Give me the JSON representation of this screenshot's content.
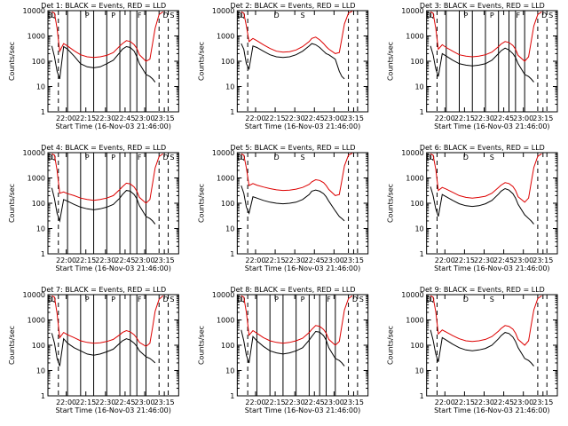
{
  "figure": {
    "panels": [
      {
        "title": "Det 1: BLACK = Events, RED = LLD",
        "xticks": [
          "22:00",
          "22:15",
          "22:30",
          "22:45",
          "23:00",
          "23:15"
        ],
        "xlabel": "Start Time (16-Nov-03 21:46:00)",
        "ylabel": "Counts/sec",
        "flags": [
          "D",
          "Q",
          "P",
          "P",
          "F",
          "D",
          "S"
        ]
      },
      {
        "title": "Det 2: BLACK = Events, RED = LLD",
        "xticks": [
          "22:00",
          "22:15",
          "22:30",
          "22:45",
          "23:00",
          "23:15"
        ],
        "xlabel": "Start Time (16-Nov-03 21:46:00)",
        "ylabel": "Counts/sec",
        "flags": [
          "D",
          "Q",
          "D",
          "S"
        ]
      },
      {
        "title": "Det 3: BLACK = Events, RED = LLD",
        "xticks": [
          "22:00",
          "22:15",
          "22:30",
          "22:45",
          "23:00",
          "23:15"
        ],
        "xlabel": "Start Time (16-Nov-03 21:46:00)",
        "ylabel": "Counts/sec",
        "flags": [
          "D",
          "Q",
          "P",
          "P",
          "F",
          "D",
          "S"
        ]
      },
      {
        "title": "Det 4: BLACK = Events, RED = LLD",
        "xticks": [
          "22:00",
          "22:15",
          "22:30",
          "22:45",
          "23:00",
          "23:15"
        ],
        "xlabel": "Start Time (16-Nov-03 21:46:00)",
        "ylabel": "Counts/sec",
        "flags": [
          "D",
          "Q",
          "P",
          "P",
          "F",
          "D",
          "S"
        ]
      },
      {
        "title": "Det 5: BLACK = Events, RED = LLD",
        "xticks": [
          "22:00",
          "22:15",
          "22:30",
          "22:45",
          "23:00",
          "23:15"
        ],
        "xlabel": "Start Time (16-Nov-03 21:46:00)",
        "ylabel": "Counts/sec",
        "flags": [
          "D",
          "Q",
          "D",
          "S"
        ]
      },
      {
        "title": "Det 6: BLACK = Events, RED = LLD",
        "xticks": [
          "22:00",
          "22:15",
          "22:30",
          "22:45",
          "23:00",
          "23:15"
        ],
        "xlabel": "Start Time (16-Nov-03 21:46:00)",
        "ylabel": "Counts/sec",
        "flags": [
          "D",
          "Q",
          "D",
          "S"
        ]
      },
      {
        "title": "Det 7: BLACK = Events, RED = LLD",
        "xticks": [
          "22:00",
          "22:15",
          "22:30",
          "22:45",
          "23:00",
          "23:15"
        ],
        "xlabel": "Start Time (16-Nov-03 21:46:00)",
        "ylabel": "Counts/sec",
        "flags": [
          "D",
          "Q",
          "P",
          "P",
          "F",
          "D",
          "S"
        ]
      },
      {
        "title": "Det 8: BLACK = Events, RED = LLD",
        "xticks": [
          "22:00",
          "22:15",
          "22:30",
          "22:45",
          "23:00",
          "23:15"
        ],
        "xlabel": "Start Time (16-Nov-03 21:46:00)",
        "ylabel": "Counts/sec",
        "flags": [
          "D",
          "Q",
          "P",
          "P",
          "F",
          "D",
          "S"
        ]
      },
      {
        "title": "Det 9: BLACK = Events, RED = LLD",
        "xticks": [
          "22:00",
          "22:15",
          "22:30",
          "22:45",
          "23:00",
          "23:15"
        ],
        "xlabel": "Start Time (16-Nov-03 21:46:00)",
        "ylabel": "Counts/sec",
        "flags": [
          "D",
          "Q",
          "D",
          "S"
        ]
      }
    ]
  },
  "chart_data": {
    "type": "line",
    "xaxis_unit": "minutes since 21:46:00",
    "xlim": [
      0,
      100
    ],
    "yscale": "log",
    "ylim": [
      1,
      10000
    ],
    "ytick_labels": [
      "1",
      "10",
      "100",
      "1000",
      "10000"
    ],
    "colors": {
      "events": "#000000",
      "lld": "#dd0000",
      "flag_lines": "#000000",
      "background": "#ffffff"
    },
    "shared_x": [
      3,
      5,
      7,
      9,
      12,
      15,
      20,
      25,
      30,
      35,
      40,
      45,
      50,
      55,
      57,
      60,
      63,
      66,
      68,
      70,
      75,
      78,
      80,
      82,
      85,
      88,
      90,
      92,
      94,
      96
    ],
    "panels": [
      {
        "name": "Det 1",
        "flag_lines": {
          "dashed": [
            8,
            85,
            92
          ],
          "solid": [
            15,
            25,
            35,
            45,
            55,
            63,
            68,
            75
          ]
        },
        "series": [
          {
            "name": "BLACK = Events",
            "values": [
              400,
              150,
              40,
              20,
              380,
              300,
              160,
              80,
              60,
              55,
              60,
              80,
              110,
              220,
              300,
              380,
              350,
              250,
              150,
              80,
              30,
              25,
              20,
              15,
              null,
              null,
              null,
              null,
              null,
              null
            ]
          },
          {
            "name": "RED = LLD",
            "values": [
              9000,
              8000,
              2000,
              250,
              500,
              400,
              260,
              180,
              150,
              140,
              150,
              170,
              220,
              400,
              500,
              650,
              600,
              450,
              320,
              180,
              100,
              120,
              500,
              2000,
              7000,
              9000,
              null,
              null,
              null,
              null
            ]
          }
        ]
      },
      {
        "name": "Det 2",
        "flag_lines": {
          "dashed": [
            8,
            85,
            92
          ],
          "solid": []
        },
        "series": [
          {
            "name": "BLACK = Events",
            "values": [
              500,
              300,
              80,
              50,
              400,
              350,
              250,
              180,
              150,
              140,
              150,
              180,
              250,
              400,
              500,
              450,
              350,
              250,
              200,
              180,
              120,
              40,
              25,
              20,
              null,
              null,
              null,
              null,
              null,
              null
            ]
          },
          {
            "name": "RED = LLD",
            "values": [
              9000,
              8000,
              2500,
              600,
              800,
              650,
              450,
              320,
              250,
              230,
              240,
              280,
              380,
              600,
              800,
              900,
              700,
              500,
              380,
              300,
              200,
              220,
              800,
              3000,
              8000,
              9500,
              null,
              null,
              null,
              null
            ]
          }
        ]
      },
      {
        "name": "Det 3",
        "flag_lines": {
          "dashed": [
            8,
            85,
            92
          ],
          "solid": [
            15,
            25,
            35,
            45,
            55,
            63,
            68,
            75
          ]
        },
        "series": [
          {
            "name": "BLACK = Events",
            "values": [
              400,
              180,
              50,
              25,
              200,
              160,
              110,
              80,
              70,
              65,
              70,
              80,
              110,
              200,
              260,
              330,
              280,
              200,
              140,
              80,
              30,
              25,
              20,
              15,
              null,
              null,
              null,
              null,
              null,
              null
            ]
          },
          {
            "name": "RED = LLD",
            "values": [
              9000,
              8000,
              2000,
              300,
              450,
              350,
              250,
              180,
              160,
              150,
              160,
              180,
              230,
              380,
              480,
              600,
              550,
              420,
              300,
              170,
              100,
              150,
              600,
              2500,
              7000,
              9000,
              null,
              null,
              null,
              null
            ]
          }
        ]
      },
      {
        "name": "Det 4",
        "flag_lines": {
          "dashed": [
            8,
            85,
            92
          ],
          "solid": [
            15,
            25,
            35,
            45,
            55,
            63,
            68,
            75
          ]
        },
        "series": [
          {
            "name": "BLACK = Events",
            "values": [
              400,
              150,
              40,
              20,
              140,
              120,
              90,
              70,
              60,
              55,
              60,
              70,
              90,
              160,
              220,
              320,
              300,
              220,
              150,
              80,
              30,
              25,
              20,
              15,
              null,
              null,
              null,
              null,
              null,
              null
            ]
          },
          {
            "name": "RED = LLD",
            "values": [
              9000,
              8000,
              2000,
              250,
              280,
              240,
              200,
              160,
              140,
              130,
              140,
              160,
              200,
              350,
              450,
              620,
              580,
              440,
              300,
              170,
              100,
              140,
              600,
              2500,
              7000,
              9000,
              null,
              null,
              null,
              null
            ]
          }
        ]
      },
      {
        "name": "Det 5",
        "flag_lines": {
          "dashed": [
            8,
            85,
            92
          ],
          "solid": []
        },
        "series": [
          {
            "name": "BLACK = Events",
            "values": [
              500,
              250,
              70,
              40,
              180,
              160,
              130,
              110,
              100,
              95,
              100,
              110,
              140,
              220,
              300,
              330,
              300,
              240,
              180,
              120,
              50,
              30,
              25,
              20,
              null,
              null,
              null,
              null,
              null,
              null
            ]
          },
          {
            "name": "RED = LLD",
            "values": [
              9000,
              8000,
              2500,
              500,
              600,
              520,
              440,
              380,
              340,
              320,
              330,
              360,
              420,
              560,
              700,
              850,
              800,
              650,
              500,
              350,
              200,
              220,
              800,
              3000,
              8000,
              9500,
              null,
              null,
              null,
              null
            ]
          }
        ]
      },
      {
        "name": "Det 6",
        "flag_lines": {
          "dashed": [
            8,
            85,
            92
          ],
          "solid": []
        },
        "series": [
          {
            "name": "BLACK = Events",
            "values": [
              450,
              200,
              60,
              30,
              220,
              180,
              130,
              95,
              80,
              75,
              80,
              95,
              130,
              230,
              300,
              380,
              330,
              240,
              160,
              90,
              35,
              25,
              20,
              15,
              null,
              null,
              null,
              null,
              null,
              null
            ]
          },
          {
            "name": "RED = LLD",
            "values": [
              9000,
              8000,
              2200,
              320,
              420,
              360,
              270,
              200,
              170,
              160,
              170,
              190,
              250,
              420,
              520,
              650,
              600,
              460,
              320,
              180,
              110,
              160,
              650,
              2600,
              7200,
              9000,
              null,
              null,
              null,
              null
            ]
          }
        ]
      },
      {
        "name": "Det 7",
        "flag_lines": {
          "dashed": [
            8,
            85,
            92
          ],
          "solid": [
            15,
            25,
            35,
            45,
            55,
            63,
            68,
            75
          ]
        },
        "series": [
          {
            "name": "BLACK = Events",
            "values": [
              300,
              120,
              30,
              15,
              180,
              120,
              80,
              60,
              45,
              40,
              45,
              55,
              70,
              120,
              150,
              180,
              160,
              120,
              90,
              60,
              35,
              30,
              25,
              20,
              null,
              null,
              null,
              null,
              null,
              null
            ]
          },
          {
            "name": "RED = LLD",
            "values": [
              9000,
              8000,
              1800,
              200,
              320,
              260,
              200,
              150,
              130,
              120,
              125,
              140,
              170,
              260,
              320,
              380,
              340,
              260,
              190,
              130,
              90,
              120,
              500,
              2200,
              6500,
              9000,
              null,
              null,
              null,
              null
            ]
          }
        ]
      },
      {
        "name": "Det 8",
        "flag_lines": {
          "dashed": [
            8,
            85,
            92
          ],
          "solid": [
            15,
            25,
            35,
            45,
            55,
            63,
            68,
            75
          ]
        },
        "series": [
          {
            "name": "BLACK = Events",
            "values": [
              400,
              150,
              40,
              20,
              220,
              150,
              90,
              60,
              50,
              45,
              50,
              60,
              80,
              160,
              220,
              350,
              330,
              240,
              160,
              80,
              30,
              25,
              20,
              15,
              null,
              null,
              null,
              null,
              null,
              null
            ]
          },
          {
            "name": "RED = LLD",
            "values": [
              9000,
              8000,
              2000,
              250,
              380,
              300,
              200,
              150,
              130,
              120,
              130,
              150,
              190,
              320,
              420,
              600,
              560,
              420,
              300,
              170,
              100,
              140,
              600,
              2500,
              7000,
              9000,
              null,
              null,
              null,
              null
            ]
          }
        ]
      },
      {
        "name": "Det 9",
        "flag_lines": {
          "dashed": [
            8,
            85,
            92
          ],
          "solid": []
        },
        "series": [
          {
            "name": "BLACK = Events",
            "values": [
              400,
              160,
              45,
              22,
              200,
              160,
              110,
              80,
              65,
              60,
              65,
              75,
              100,
              180,
              240,
              320,
              290,
              210,
              140,
              80,
              30,
              25,
              20,
              15,
              null,
              null,
              null,
              null,
              null,
              null
            ]
          },
          {
            "name": "RED = LLD",
            "values": [
              9000,
              8000,
              2100,
              280,
              400,
              330,
              240,
              180,
              150,
              140,
              150,
              170,
              220,
              360,
              460,
              600,
              560,
              430,
              300,
              170,
              100,
              150,
              620,
              2500,
              7000,
              9000,
              null,
              null,
              null,
              null
            ]
          }
        ]
      }
    ]
  }
}
